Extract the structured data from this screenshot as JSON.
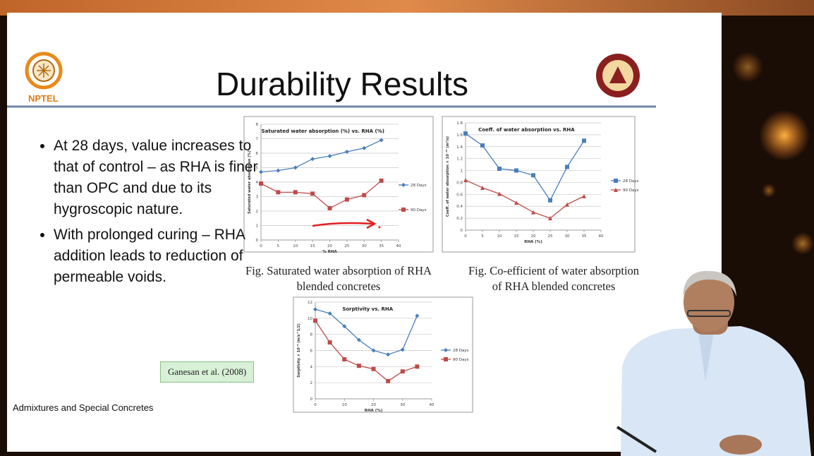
{
  "slide": {
    "title": "Durability Results",
    "logo_label": "NPTEL",
    "bullets": [
      "At 28 days, value increases to that of control – as RHA is finer than OPC and due to its hygroscopic nature.",
      "With prolonged curing – RHA addition leads to reduction of permeable voids."
    ],
    "captions": [
      "Fig. Saturated water absorption of RHA blended concretes",
      "Fig. Co-efficient of water absorption of RHA blended concretes"
    ],
    "reference": "Ganesan et al. (2008)",
    "footer": "Admixtures and Special Concretes"
  },
  "chart_data": [
    {
      "type": "line",
      "title": "Saturated water absorption (%) vs. RHA (%)",
      "x_label": "% RHA",
      "y_label": "Saturated water absorption (%)",
      "x": [
        0,
        5,
        10,
        15,
        20,
        25,
        30,
        35
      ],
      "xlim": [
        0,
        40
      ],
      "xticks": [
        0,
        5,
        10,
        15,
        20,
        25,
        30,
        35,
        40
      ],
      "ylim": [
        0,
        8
      ],
      "yticks": [
        0,
        1,
        2,
        3,
        4,
        5,
        6,
        7,
        8
      ],
      "grid": true,
      "series": [
        {
          "name": "28 Days",
          "color": "#4a7ebb",
          "marker": "diamond",
          "values": [
            4.7,
            4.8,
            5.0,
            5.6,
            5.8,
            6.1,
            6.35,
            6.9
          ]
        },
        {
          "name": "90 Days",
          "color": "#be4b48",
          "marker": "square",
          "values": [
            3.9,
            3.3,
            3.3,
            3.2,
            2.2,
            2.8,
            3.1,
            4.1
          ]
        }
      ]
    },
    {
      "type": "line",
      "title": "Coeff. of water absorption vs. RHA",
      "x_label": "RHA (%)",
      "y_label": "Coeff. of water absorption × 10⁻¹⁰ (m²/s)",
      "x": [
        0,
        5,
        10,
        15,
        20,
        25,
        30,
        35
      ],
      "xlim": [
        0,
        40
      ],
      "xticks": [
        0,
        5,
        10,
        15,
        20,
        25,
        30,
        35,
        40
      ],
      "ylim": [
        0,
        1.8
      ],
      "yticks": [
        0,
        0.2,
        0.4,
        0.6,
        0.8,
        1,
        1.2,
        1.4,
        1.6,
        1.8
      ],
      "grid": true,
      "series": [
        {
          "name": "28 Days",
          "color": "#4a7ebb",
          "marker": "square",
          "values": [
            1.62,
            1.42,
            1.03,
            1.0,
            0.92,
            0.5,
            1.06,
            1.5
          ]
        },
        {
          "name": "90 Days",
          "color": "#be4b48",
          "marker": "triangle",
          "values": [
            0.84,
            0.71,
            0.61,
            0.46,
            0.3,
            0.2,
            0.43,
            0.57
          ]
        }
      ]
    },
    {
      "type": "line",
      "title": "Sorptivity vs. RHA",
      "x_label": "RHA (%)",
      "y_label": "Sorptivity × 10⁻⁶ (m/s^1/2)",
      "x": [
        0,
        5,
        10,
        15,
        20,
        25,
        30,
        35
      ],
      "xlim": [
        0,
        40
      ],
      "xticks": [
        0,
        10,
        20,
        30,
        40
      ],
      "ylim": [
        0,
        12
      ],
      "yticks": [
        0,
        2,
        4,
        6,
        8,
        10,
        12
      ],
      "grid": true,
      "series": [
        {
          "name": "28 Days",
          "color": "#4a7ebb",
          "marker": "diamond",
          "values": [
            11.1,
            10.6,
            9.0,
            7.3,
            6.0,
            5.5,
            6.1,
            10.3
          ]
        },
        {
          "name": "90 Days",
          "color": "#be4b48",
          "marker": "square",
          "values": [
            9.7,
            7.0,
            4.9,
            4.1,
            3.7,
            2.2,
            3.4,
            4.0
          ]
        }
      ]
    }
  ]
}
